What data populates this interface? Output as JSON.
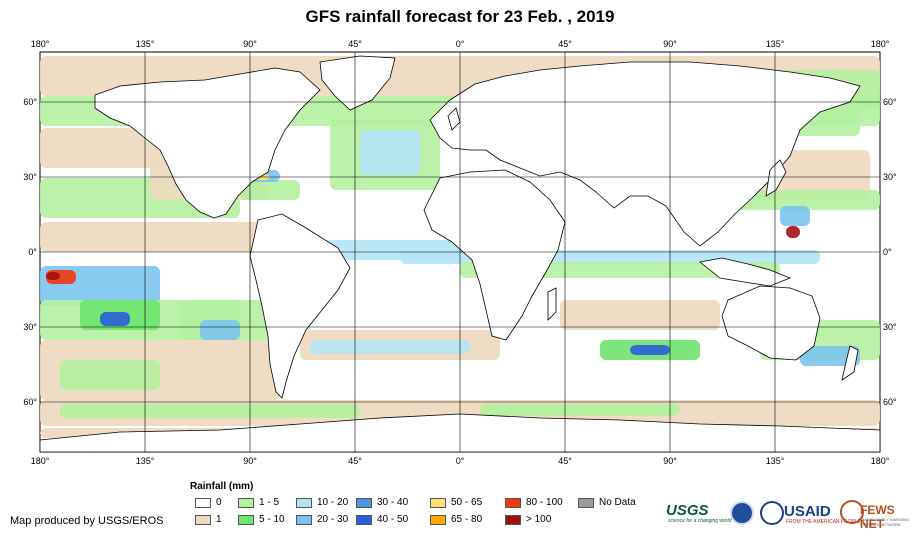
{
  "title": "GFS rainfall forecast for 23 Feb. , 2019",
  "map": {
    "lon_labels": [
      "180°",
      "135°",
      "90°",
      "45°",
      "0°",
      "45°",
      "90°",
      "135°",
      "180°"
    ],
    "lat_labels": [
      "60°",
      "30°",
      "0°",
      "30°",
      "60°"
    ],
    "colors": {
      "ocean": "#ffffff",
      "land_outline": "#000000",
      "grid": "#000000"
    }
  },
  "legend": {
    "title": "Rainfall (mm)",
    "items": [
      {
        "label": "0",
        "color": "#ffffff"
      },
      {
        "label": "1",
        "color": "#ecd9be"
      },
      {
        "label": "1 - 5",
        "color": "#b4f0a0"
      },
      {
        "label": "5 - 10",
        "color": "#6ee36e"
      },
      {
        "label": "10 - 20",
        "color": "#b2e4f5"
      },
      {
        "label": "20 - 30",
        "color": "#7cc4ee"
      },
      {
        "label": "30 - 40",
        "color": "#4d94e0"
      },
      {
        "label": "40 - 50",
        "color": "#2b5dd8"
      },
      {
        "label": "50 - 65",
        "color": "#ffe070"
      },
      {
        "label": "65 - 80",
        "color": "#ffaa00"
      },
      {
        "label": "80 - 100",
        "color": "#f03810"
      },
      {
        "label": "> 100",
        "color": "#a01010"
      },
      {
        "label": "No Data",
        "color": "#9a9a9a"
      }
    ]
  },
  "credit": "Map produced by USGS/EROS",
  "logos": {
    "usgs": "USGS",
    "usgs_tagline": "science for a changing world",
    "usaid": "USAID",
    "usaid_tagline": "FROM THE AMERICAN PEOPLE",
    "fews": "FEWS NET",
    "fews_tagline": "FAMINE EARLY WARNING SYSTEMS NETWORK"
  }
}
